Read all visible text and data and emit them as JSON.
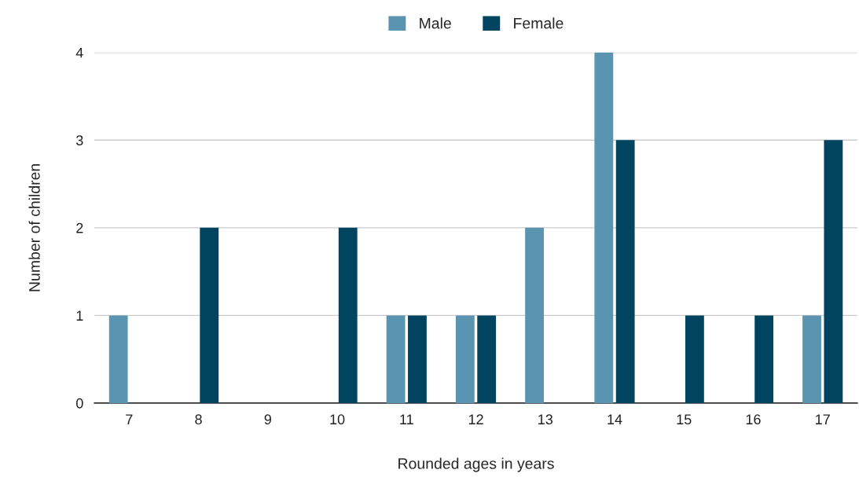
{
  "chart_data": {
    "type": "bar",
    "xlabel": "Rounded ages in years",
    "ylabel": "Number of children",
    "categories": [
      "7",
      "8",
      "9",
      "10",
      "11",
      "12",
      "13",
      "14",
      "15",
      "16",
      "17"
    ],
    "series": [
      {
        "name": "Male",
        "color": "#5b94b1",
        "values": [
          1,
          0,
          0,
          0,
          1,
          1,
          2,
          4,
          0,
          0,
          1
        ]
      },
      {
        "name": "Female",
        "color": "#00445f",
        "values": [
          0,
          2,
          0,
          2,
          1,
          1,
          0,
          3,
          1,
          1,
          3
        ]
      }
    ],
    "ylim": [
      0,
      4
    ],
    "yticks": [
      0,
      1,
      2,
      3,
      4
    ],
    "grid": "y",
    "legend": "top"
  }
}
